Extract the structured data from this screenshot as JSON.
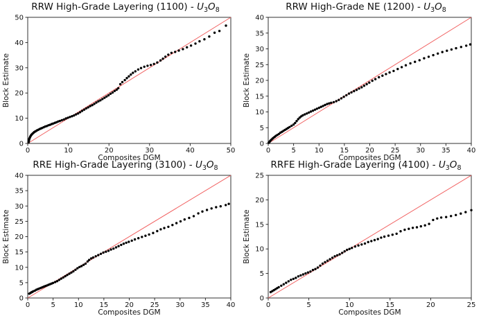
{
  "figure": {
    "background": "#ffffff",
    "marker_color": "#000000",
    "line_color": "#f15f5f",
    "axis_color": "#1a1a1a"
  },
  "chart_data": [
    {
      "type": "scatter",
      "title_prefix": "RRW High-Grade Layering (1100) - ",
      "title_math": "U3O8",
      "xlabel": "Composites DGM",
      "ylabel": "Block Estimate",
      "xlim": [
        0,
        50
      ],
      "ylim": [
        0,
        50
      ],
      "xticks": [
        0,
        10,
        20,
        30,
        40,
        50
      ],
      "yticks": [
        0,
        10,
        20,
        30,
        40,
        50
      ],
      "grid": false,
      "legend": "none",
      "reference_line": {
        "x": [
          0,
          50
        ],
        "y": [
          0,
          50
        ]
      },
      "points": [
        [
          0.2,
          0.4
        ],
        [
          0.25,
          0.8
        ],
        [
          0.3,
          1.2
        ],
        [
          0.35,
          1.6
        ],
        [
          0.4,
          1.9
        ],
        [
          0.5,
          2.2
        ],
        [
          0.6,
          2.6
        ],
        [
          0.7,
          2.9
        ],
        [
          0.8,
          3.2
        ],
        [
          0.9,
          3.4
        ],
        [
          1.0,
          3.6
        ],
        [
          1.2,
          3.9
        ],
        [
          1.4,
          4.2
        ],
        [
          1.6,
          4.5
        ],
        [
          1.8,
          4.7
        ],
        [
          2.0,
          4.9
        ],
        [
          2.3,
          5.2
        ],
        [
          2.6,
          5.4
        ],
        [
          2.9,
          5.7
        ],
        [
          3.2,
          5.9
        ],
        [
          3.5,
          6.1
        ],
        [
          3.9,
          6.4
        ],
        [
          4.3,
          6.7
        ],
        [
          4.7,
          6.9
        ],
        [
          5.1,
          7.2
        ],
        [
          5.5,
          7.4
        ],
        [
          5.9,
          7.7
        ],
        [
          6.3,
          7.9
        ],
        [
          6.7,
          8.2
        ],
        [
          7.1,
          8.4
        ],
        [
          7.5,
          8.7
        ],
        [
          7.9,
          8.9
        ],
        [
          8.4,
          9.2
        ],
        [
          8.9,
          9.5
        ],
        [
          9.4,
          9.9
        ],
        [
          9.9,
          10.2
        ],
        [
          10.4,
          10.5
        ],
        [
          10.9,
          10.8
        ],
        [
          11.4,
          11.1
        ],
        [
          11.9,
          11.5
        ],
        [
          12.4,
          11.9
        ],
        [
          12.9,
          12.4
        ],
        [
          13.4,
          12.9
        ],
        [
          13.9,
          13.4
        ],
        [
          14.4,
          13.9
        ],
        [
          14.9,
          14.3
        ],
        [
          15.4,
          14.8
        ],
        [
          15.9,
          15.2
        ],
        [
          16.4,
          15.7
        ],
        [
          16.9,
          16.2
        ],
        [
          17.4,
          16.7
        ],
        [
          17.9,
          17.1
        ],
        [
          18.4,
          17.6
        ],
        [
          18.9,
          18.1
        ],
        [
          19.4,
          18.6
        ],
        [
          19.9,
          19.1
        ],
        [
          20.4,
          19.7
        ],
        [
          20.9,
          20.2
        ],
        [
          21.4,
          20.8
        ],
        [
          21.9,
          21.3
        ],
        [
          22.3,
          21.9
        ],
        [
          22.8,
          23.5
        ],
        [
          23.3,
          24.3
        ],
        [
          23.9,
          25.1
        ],
        [
          24.4,
          25.9
        ],
        [
          24.9,
          26.6
        ],
        [
          25.4,
          27.3
        ],
        [
          25.9,
          28.0
        ],
        [
          26.5,
          28.6
        ],
        [
          27.2,
          29.3
        ],
        [
          27.9,
          29.9
        ],
        [
          28.7,
          30.4
        ],
        [
          29.5,
          30.8
        ],
        [
          30.3,
          31.1
        ],
        [
          31.1,
          31.5
        ],
        [
          31.9,
          32.1
        ],
        [
          32.7,
          32.9
        ],
        [
          33.3,
          33.6
        ],
        [
          33.9,
          34.4
        ],
        [
          34.6,
          35.2
        ],
        [
          35.4,
          35.9
        ],
        [
          36.3,
          36.3
        ],
        [
          37.2,
          36.8
        ],
        [
          38.2,
          37.4
        ],
        [
          39.2,
          38.1
        ],
        [
          40.2,
          38.8
        ],
        [
          41.3,
          39.6
        ],
        [
          42.3,
          40.5
        ],
        [
          43.5,
          41.3
        ],
        [
          44.7,
          42.4
        ],
        [
          46.0,
          43.9
        ],
        [
          47.2,
          44.6
        ],
        [
          48.8,
          46.7
        ]
      ]
    },
    {
      "type": "scatter",
      "title_prefix": "RRW High-Grade NE (1200) - ",
      "title_math": "U3O8",
      "xlabel": "Composites DGM",
      "ylabel": "Block Estimate",
      "xlim": [
        0,
        40
      ],
      "ylim": [
        0,
        40
      ],
      "xticks": [
        0,
        5,
        10,
        15,
        20,
        25,
        30,
        35,
        40
      ],
      "yticks": [
        0,
        5,
        10,
        15,
        20,
        25,
        30,
        35,
        40
      ],
      "grid": false,
      "legend": "none",
      "reference_line": {
        "x": [
          0,
          40
        ],
        "y": [
          0,
          40
        ]
      },
      "points": [
        [
          0.1,
          0.2
        ],
        [
          0.2,
          0.4
        ],
        [
          0.3,
          0.6
        ],
        [
          0.4,
          0.8
        ],
        [
          0.5,
          1.0
        ],
        [
          0.7,
          1.3
        ],
        [
          0.9,
          1.6
        ],
        [
          1.1,
          1.9
        ],
        [
          1.3,
          2.1
        ],
        [
          1.5,
          2.4
        ],
        [
          1.8,
          2.7
        ],
        [
          2.1,
          3.0
        ],
        [
          2.4,
          3.4
        ],
        [
          2.7,
          3.7
        ],
        [
          3.0,
          4.0
        ],
        [
          3.3,
          4.3
        ],
        [
          3.6,
          4.6
        ],
        [
          3.9,
          4.9
        ],
        [
          4.2,
          5.2
        ],
        [
          4.6,
          5.6
        ],
        [
          5.0,
          6.0
        ],
        [
          5.3,
          6.5
        ],
        [
          5.6,
          7.1
        ],
        [
          5.9,
          7.7
        ],
        [
          6.2,
          8.2
        ],
        [
          6.5,
          8.6
        ],
        [
          6.8,
          8.9
        ],
        [
          7.2,
          9.2
        ],
        [
          7.6,
          9.5
        ],
        [
          8.0,
          9.8
        ],
        [
          8.4,
          10.1
        ],
        [
          8.8,
          10.4
        ],
        [
          9.2,
          10.7
        ],
        [
          9.6,
          11.0
        ],
        [
          10.0,
          11.3
        ],
        [
          10.4,
          11.6
        ],
        [
          10.8,
          11.9
        ],
        [
          11.2,
          12.2
        ],
        [
          11.6,
          12.5
        ],
        [
          12.0,
          12.7
        ],
        [
          12.4,
          12.9
        ],
        [
          12.9,
          13.1
        ],
        [
          13.4,
          13.4
        ],
        [
          13.9,
          13.8
        ],
        [
          14.4,
          14.3
        ],
        [
          14.9,
          14.8
        ],
        [
          15.4,
          15.3
        ],
        [
          15.9,
          15.8
        ],
        [
          16.4,
          16.2
        ],
        [
          16.9,
          16.6
        ],
        [
          17.4,
          17.0
        ],
        [
          17.9,
          17.4
        ],
        [
          18.4,
          17.8
        ],
        [
          18.9,
          18.3
        ],
        [
          19.4,
          18.8
        ],
        [
          19.9,
          19.3
        ],
        [
          20.5,
          19.9
        ],
        [
          21.1,
          20.4
        ],
        [
          21.8,
          21.0
        ],
        [
          22.5,
          21.5
        ],
        [
          23.2,
          22.0
        ],
        [
          23.9,
          22.5
        ],
        [
          24.7,
          23.0
        ],
        [
          25.5,
          23.6
        ],
        [
          26.3,
          24.2
        ],
        [
          27.1,
          24.8
        ],
        [
          28.0,
          25.4
        ],
        [
          28.9,
          25.9
        ],
        [
          29.8,
          26.4
        ],
        [
          30.7,
          27.0
        ],
        [
          31.6,
          27.5
        ],
        [
          32.5,
          28.0
        ],
        [
          33.4,
          28.5
        ],
        [
          34.3,
          29.0
        ],
        [
          35.2,
          29.4
        ],
        [
          36.1,
          29.8
        ],
        [
          37.0,
          30.2
        ],
        [
          38.0,
          30.6
        ],
        [
          39.0,
          31.0
        ],
        [
          39.8,
          31.4
        ]
      ]
    },
    {
      "type": "scatter",
      "title_prefix": "RRE High-Grade Layering (3100) - ",
      "title_math": "U3O8",
      "xlabel": "Composites DGM",
      "ylabel": "Block Estimate",
      "xlim": [
        0,
        40
      ],
      "ylim": [
        0,
        40
      ],
      "xticks": [
        0,
        5,
        10,
        15,
        20,
        25,
        30,
        35,
        40
      ],
      "yticks": [
        0,
        5,
        10,
        15,
        20,
        25,
        30,
        35,
        40
      ],
      "grid": false,
      "legend": "none",
      "reference_line": {
        "x": [
          0,
          40
        ],
        "y": [
          0,
          40
        ]
      },
      "points": [
        [
          0.3,
          1.4
        ],
        [
          0.5,
          1.6
        ],
        [
          0.7,
          1.8
        ],
        [
          0.9,
          2.0
        ],
        [
          1.1,
          2.2
        ],
        [
          1.4,
          2.4
        ],
        [
          1.7,
          2.7
        ],
        [
          2.0,
          2.9
        ],
        [
          2.3,
          3.1
        ],
        [
          2.6,
          3.3
        ],
        [
          2.9,
          3.5
        ],
        [
          3.2,
          3.7
        ],
        [
          3.5,
          3.9
        ],
        [
          3.8,
          4.1
        ],
        [
          4.1,
          4.3
        ],
        [
          4.4,
          4.5
        ],
        [
          4.7,
          4.7
        ],
        [
          5.0,
          4.9
        ],
        [
          5.4,
          5.2
        ],
        [
          5.8,
          5.5
        ],
        [
          6.2,
          5.9
        ],
        [
          6.6,
          6.3
        ],
        [
          7.0,
          6.7
        ],
        [
          7.4,
          7.1
        ],
        [
          7.8,
          7.5
        ],
        [
          8.2,
          7.9
        ],
        [
          8.6,
          8.3
        ],
        [
          9.0,
          8.7
        ],
        [
          9.4,
          9.2
        ],
        [
          9.8,
          9.7
        ],
        [
          10.2,
          10.1
        ],
        [
          10.6,
          10.4
        ],
        [
          11.0,
          10.8
        ],
        [
          11.4,
          11.2
        ],
        [
          11.8,
          11.9
        ],
        [
          12.1,
          12.4
        ],
        [
          12.5,
          12.9
        ],
        [
          12.9,
          13.2
        ],
        [
          13.4,
          13.6
        ],
        [
          13.9,
          14.0
        ],
        [
          14.4,
          14.4
        ],
        [
          14.9,
          14.8
        ],
        [
          15.4,
          15.1
        ],
        [
          15.9,
          15.4
        ],
        [
          16.4,
          15.8
        ],
        [
          16.9,
          16.1
        ],
        [
          17.4,
          16.5
        ],
        [
          17.9,
          16.9
        ],
        [
          18.4,
          17.3
        ],
        [
          18.9,
          17.7
        ],
        [
          19.4,
          18.0
        ],
        [
          19.9,
          18.3
        ],
        [
          20.5,
          18.7
        ],
        [
          21.1,
          19.1
        ],
        [
          21.8,
          19.5
        ],
        [
          22.5,
          19.9
        ],
        [
          23.2,
          20.3
        ],
        [
          23.9,
          20.7
        ],
        [
          24.7,
          21.2
        ],
        [
          25.5,
          21.8
        ],
        [
          26.2,
          22.4
        ],
        [
          26.9,
          22.8
        ],
        [
          27.7,
          23.2
        ],
        [
          28.5,
          23.8
        ],
        [
          29.3,
          24.4
        ],
        [
          30.1,
          25.0
        ],
        [
          30.9,
          25.6
        ],
        [
          31.8,
          26.1
        ],
        [
          32.7,
          26.7
        ],
        [
          33.6,
          27.6
        ],
        [
          34.4,
          28.2
        ],
        [
          35.3,
          28.7
        ],
        [
          36.2,
          29.2
        ],
        [
          37.1,
          29.6
        ],
        [
          38.0,
          29.9
        ],
        [
          39.0,
          30.3
        ],
        [
          39.6,
          30.7
        ]
      ]
    },
    {
      "type": "scatter",
      "title_prefix": "RRFE High-Grade Layering (4100) - ",
      "title_math": "U3O8",
      "xlabel": "Composites DGM",
      "ylabel": "Block Estimate",
      "xlim": [
        0,
        25
      ],
      "ylim": [
        0,
        25
      ],
      "xticks": [
        0,
        5,
        10,
        15,
        20,
        25
      ],
      "yticks": [
        0,
        5,
        10,
        15,
        20,
        25
      ],
      "grid": false,
      "legend": "none",
      "reference_line": {
        "x": [
          0,
          25
        ],
        "y": [
          0,
          25
        ]
      },
      "points": [
        [
          0.3,
          1.2
        ],
        [
          0.5,
          1.4
        ],
        [
          0.7,
          1.6
        ],
        [
          0.9,
          1.8
        ],
        [
          1.1,
          2.0
        ],
        [
          1.3,
          2.2
        ],
        [
          1.6,
          2.5
        ],
        [
          1.9,
          2.8
        ],
        [
          2.2,
          3.1
        ],
        [
          2.5,
          3.4
        ],
        [
          2.8,
          3.7
        ],
        [
          3.1,
          3.9
        ],
        [
          3.4,
          4.1
        ],
        [
          3.7,
          4.4
        ],
        [
          4.0,
          4.6
        ],
        [
          4.3,
          4.8
        ],
        [
          4.6,
          5.0
        ],
        [
          4.9,
          5.2
        ],
        [
          5.2,
          5.4
        ],
        [
          5.5,
          5.7
        ],
        [
          5.8,
          5.9
        ],
        [
          6.1,
          6.2
        ],
        [
          6.4,
          6.6
        ],
        [
          6.7,
          7.0
        ],
        [
          7.0,
          7.3
        ],
        [
          7.3,
          7.6
        ],
        [
          7.6,
          7.9
        ],
        [
          7.9,
          8.2
        ],
        [
          8.2,
          8.5
        ],
        [
          8.5,
          8.7
        ],
        [
          8.8,
          8.9
        ],
        [
          9.1,
          9.2
        ],
        [
          9.4,
          9.5
        ],
        [
          9.7,
          9.8
        ],
        [
          10.0,
          10.0
        ],
        [
          10.3,
          10.2
        ],
        [
          10.7,
          10.5
        ],
        [
          11.1,
          10.7
        ],
        [
          11.5,
          10.9
        ],
        [
          11.9,
          11.1
        ],
        [
          12.3,
          11.4
        ],
        [
          12.7,
          11.6
        ],
        [
          13.1,
          11.8
        ],
        [
          13.5,
          12.0
        ],
        [
          13.9,
          12.3
        ],
        [
          14.3,
          12.5
        ],
        [
          14.8,
          12.7
        ],
        [
          15.3,
          12.9
        ],
        [
          15.8,
          13.1
        ],
        [
          16.3,
          13.6
        ],
        [
          16.8,
          13.9
        ],
        [
          17.3,
          14.1
        ],
        [
          17.8,
          14.3
        ],
        [
          18.3,
          14.4
        ],
        [
          18.8,
          14.6
        ],
        [
          19.3,
          14.8
        ],
        [
          19.8,
          15.1
        ],
        [
          20.3,
          15.9
        ],
        [
          20.8,
          16.2
        ],
        [
          21.3,
          16.4
        ],
        [
          21.9,
          16.5
        ],
        [
          22.5,
          16.7
        ],
        [
          23.1,
          16.9
        ],
        [
          23.7,
          17.2
        ],
        [
          24.3,
          17.5
        ],
        [
          25.0,
          17.9
        ]
      ]
    }
  ]
}
